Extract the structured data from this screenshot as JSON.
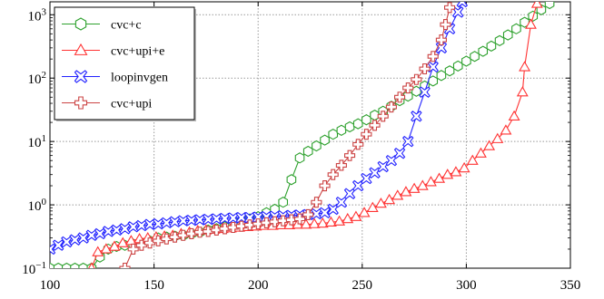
{
  "chart_data": {
    "type": "line",
    "title": "",
    "xlabel": "",
    "ylabel": "",
    "x_scale": "linear",
    "y_scale": "log",
    "xlim": [
      100,
      350
    ],
    "ylim": [
      0.1,
      1600
    ],
    "grid": true,
    "legend_position": "top-left",
    "x_ticks": [
      100,
      150,
      200,
      250,
      300,
      350
    ],
    "x_tick_labels": [
      "100",
      "150",
      "200",
      "250",
      "300",
      "350"
    ],
    "y_ticks": [
      0.1,
      1,
      10,
      100,
      1000
    ],
    "y_tick_labels": [
      {
        "base": "10",
        "exp": "−1"
      },
      {
        "base": "10",
        "exp": "0"
      },
      {
        "base": "10",
        "exp": "1"
      },
      {
        "base": "10",
        "exp": "2"
      },
      {
        "base": "10",
        "exp": "3"
      }
    ],
    "series": [
      {
        "name": "cvc+c",
        "color": "#2ca02c",
        "marker": "hexagon",
        "points": [
          [
            100,
            0.1
          ],
          [
            104,
            0.1
          ],
          [
            108,
            0.1
          ],
          [
            112,
            0.1
          ],
          [
            116,
            0.1
          ],
          [
            120,
            0.1
          ],
          [
            124,
            0.15
          ],
          [
            128,
            0.2
          ],
          [
            132,
            0.22
          ],
          [
            136,
            0.23
          ],
          [
            140,
            0.24
          ],
          [
            144,
            0.25
          ],
          [
            148,
            0.27
          ],
          [
            152,
            0.3
          ],
          [
            156,
            0.31
          ],
          [
            160,
            0.32
          ],
          [
            164,
            0.33
          ],
          [
            168,
            0.35
          ],
          [
            172,
            0.37
          ],
          [
            176,
            0.4
          ],
          [
            180,
            0.42
          ],
          [
            184,
            0.45
          ],
          [
            188,
            0.5
          ],
          [
            192,
            0.55
          ],
          [
            196,
            0.6
          ],
          [
            200,
            0.65
          ],
          [
            204,
            0.75
          ],
          [
            208,
            0.85
          ],
          [
            212,
            1.1
          ],
          [
            216,
            2.5
          ],
          [
            220,
            5.5
          ],
          [
            224,
            7
          ],
          [
            228,
            8.5
          ],
          [
            232,
            10.5
          ],
          [
            236,
            13
          ],
          [
            240,
            15
          ],
          [
            244,
            17
          ],
          [
            248,
            19
          ],
          [
            252,
            22
          ],
          [
            256,
            26
          ],
          [
            260,
            30
          ],
          [
            264,
            36
          ],
          [
            268,
            44
          ],
          [
            272,
            52
          ],
          [
            276,
            62
          ],
          [
            280,
            75
          ],
          [
            284,
            90
          ],
          [
            288,
            110
          ],
          [
            292,
            130
          ],
          [
            296,
            155
          ],
          [
            300,
            185
          ],
          [
            304,
            220
          ],
          [
            308,
            265
          ],
          [
            312,
            320
          ],
          [
            316,
            390
          ],
          [
            320,
            480
          ],
          [
            324,
            600
          ],
          [
            328,
            760
          ],
          [
            332,
            950
          ],
          [
            336,
            1200
          ],
          [
            340,
            1500
          ]
        ]
      },
      {
        "name": "cvc+upi+e",
        "color": "#ff3333",
        "marker": "triangle",
        "points": [
          [
            120,
            0.1
          ],
          [
            123,
            0.18
          ],
          [
            127,
            0.2
          ],
          [
            131,
            0.22
          ],
          [
            135,
            0.25
          ],
          [
            139,
            0.27
          ],
          [
            143,
            0.29
          ],
          [
            147,
            0.3
          ],
          [
            151,
            0.31
          ],
          [
            155,
            0.32
          ],
          [
            159,
            0.33
          ],
          [
            163,
            0.35
          ],
          [
            167,
            0.37
          ],
          [
            171,
            0.39
          ],
          [
            175,
            0.4
          ],
          [
            179,
            0.41
          ],
          [
            183,
            0.42
          ],
          [
            187,
            0.43
          ],
          [
            191,
            0.44
          ],
          [
            195,
            0.45
          ],
          [
            199,
            0.46
          ],
          [
            203,
            0.47
          ],
          [
            207,
            0.47
          ],
          [
            211,
            0.48
          ],
          [
            215,
            0.48
          ],
          [
            219,
            0.49
          ],
          [
            223,
            0.49
          ],
          [
            227,
            0.5
          ],
          [
            231,
            0.51
          ],
          [
            235,
            0.53
          ],
          [
            239,
            0.55
          ],
          [
            243,
            0.6
          ],
          [
            247,
            0.65
          ],
          [
            251,
            0.75
          ],
          [
            255,
            0.9
          ],
          [
            259,
            1.05
          ],
          [
            263,
            1.2
          ],
          [
            267,
            1.4
          ],
          [
            271,
            1.6
          ],
          [
            275,
            1.8
          ],
          [
            279,
            2.0
          ],
          [
            283,
            2.3
          ],
          [
            287,
            2.6
          ],
          [
            291,
            3.0
          ],
          [
            295,
            3.3
          ],
          [
            299,
            3.8
          ],
          [
            303,
            5.0
          ],
          [
            307,
            6.5
          ],
          [
            311,
            8.5
          ],
          [
            315,
            11
          ],
          [
            319,
            15
          ],
          [
            323,
            25
          ],
          [
            327,
            60
          ],
          [
            328,
            150
          ],
          [
            331,
            700
          ],
          [
            334,
            1500
          ]
        ]
      },
      {
        "name": "loopinvgen",
        "color": "#2222ff",
        "marker": "x-box",
        "points": [
          [
            100,
            0.2
          ],
          [
            104,
            0.23
          ],
          [
            108,
            0.26
          ],
          [
            112,
            0.28
          ],
          [
            116,
            0.3
          ],
          [
            120,
            0.33
          ],
          [
            124,
            0.35
          ],
          [
            128,
            0.38
          ],
          [
            132,
            0.4
          ],
          [
            136,
            0.42
          ],
          [
            140,
            0.45
          ],
          [
            144,
            0.47
          ],
          [
            148,
            0.49
          ],
          [
            152,
            0.5
          ],
          [
            156,
            0.52
          ],
          [
            160,
            0.54
          ],
          [
            164,
            0.56
          ],
          [
            168,
            0.57
          ],
          [
            172,
            0.58
          ],
          [
            176,
            0.59
          ],
          [
            180,
            0.6
          ],
          [
            184,
            0.61
          ],
          [
            188,
            0.62
          ],
          [
            192,
            0.63
          ],
          [
            196,
            0.63
          ],
          [
            200,
            0.64
          ],
          [
            204,
            0.65
          ],
          [
            208,
            0.66
          ],
          [
            212,
            0.67
          ],
          [
            216,
            0.68
          ],
          [
            220,
            0.69
          ],
          [
            224,
            0.7
          ],
          [
            228,
            0.72
          ],
          [
            232,
            0.75
          ],
          [
            236,
            0.85
          ],
          [
            240,
            1.1
          ],
          [
            244,
            1.5
          ],
          [
            248,
            2.0
          ],
          [
            252,
            2.6
          ],
          [
            256,
            3.2
          ],
          [
            260,
            4.0
          ],
          [
            264,
            5.0
          ],
          [
            268,
            6.5
          ],
          [
            272,
            10
          ],
          [
            276,
            25
          ],
          [
            280,
            60
          ],
          [
            284,
            150
          ],
          [
            288,
            300
          ],
          [
            292,
            600
          ],
          [
            296,
            1100
          ],
          [
            298,
            1600
          ]
        ]
      },
      {
        "name": "cvc+upi",
        "color": "#cc4444",
        "marker": "plus-box",
        "points": [
          [
            136,
            0.1
          ],
          [
            140,
            0.2
          ],
          [
            144,
            0.23
          ],
          [
            148,
            0.25
          ],
          [
            152,
            0.27
          ],
          [
            156,
            0.29
          ],
          [
            160,
            0.31
          ],
          [
            164,
            0.33
          ],
          [
            168,
            0.35
          ],
          [
            172,
            0.37
          ],
          [
            176,
            0.38
          ],
          [
            180,
            0.4
          ],
          [
            184,
            0.42
          ],
          [
            188,
            0.44
          ],
          [
            192,
            0.46
          ],
          [
            196,
            0.48
          ],
          [
            200,
            0.5
          ],
          [
            204,
            0.52
          ],
          [
            208,
            0.54
          ],
          [
            212,
            0.56
          ],
          [
            216,
            0.58
          ],
          [
            220,
            0.6
          ],
          [
            224,
            0.7
          ],
          [
            228,
            1.1
          ],
          [
            232,
            2.0
          ],
          [
            236,
            3.0
          ],
          [
            240,
            4.2
          ],
          [
            244,
            6
          ],
          [
            248,
            9
          ],
          [
            252,
            13
          ],
          [
            256,
            18
          ],
          [
            260,
            25
          ],
          [
            264,
            35
          ],
          [
            268,
            50
          ],
          [
            272,
            70
          ],
          [
            276,
            95
          ],
          [
            280,
            140
          ],
          [
            284,
            220
          ],
          [
            288,
            400
          ],
          [
            290,
            700
          ],
          [
            292,
            1300
          ]
        ]
      }
    ]
  }
}
